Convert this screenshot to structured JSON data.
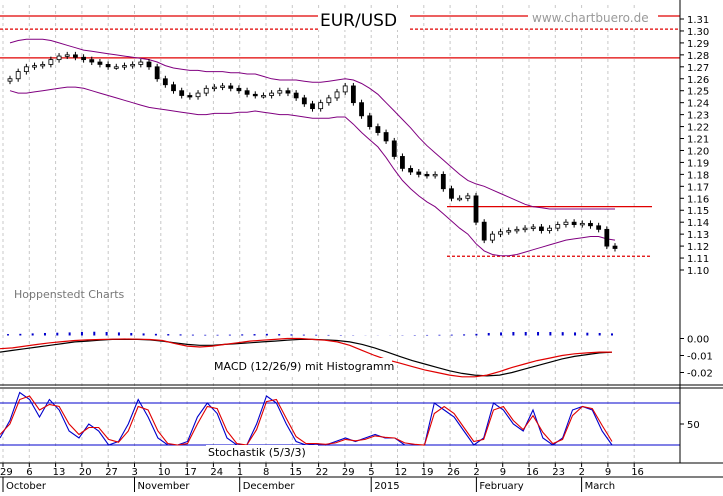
{
  "chart_data": [
    {
      "type": "candlestick",
      "title": "EUR/USD",
      "watermark": "www.chartbuero.de",
      "credit": "Hoppenstedt Charts",
      "ylim": [
        1.1,
        1.31
      ],
      "y_ticks": [
        "1.31",
        "1.30",
        "1.29",
        "1.28",
        "1.27",
        "1.26",
        "1.25",
        "1.24",
        "1.23",
        "1.22",
        "1.21",
        "1.20",
        "1.19",
        "1.18",
        "1.17",
        "1.16",
        "1.15",
        "1.14",
        "1.13",
        "1.12",
        "1.11",
        "1.10"
      ],
      "x_day_ticks": [
        "29",
        "6",
        "13",
        "20",
        "27",
        "3",
        "10",
        "17",
        "24",
        "1",
        "8",
        "15",
        "22",
        "29",
        "5",
        "12",
        "19",
        "26",
        "2",
        "9",
        "16",
        "23",
        "2",
        "9",
        "16"
      ],
      "x_month_labels": [
        "October",
        "November",
        "December",
        "2015",
        "February",
        "March"
      ],
      "grid": true,
      "reference_lines": [
        {
          "value": 1.3125,
          "style": "solid",
          "color": "#e00000"
        },
        {
          "value": 1.3015,
          "style": "dashed",
          "color": "#e00000"
        },
        {
          "value": 1.2775,
          "style": "solid",
          "color": "#e00000"
        },
        {
          "value": 1.153,
          "style": "solid",
          "color": "#e00000"
        },
        {
          "value": 1.1115,
          "style": "dashed",
          "color": "#e00000"
        }
      ],
      "close_series": [
        1.26,
        1.266,
        1.27,
        1.271,
        1.272,
        1.276,
        1.279,
        1.28,
        1.278,
        1.276,
        1.274,
        1.272,
        1.27,
        1.27,
        1.271,
        1.272,
        1.274,
        1.27,
        1.26,
        1.255,
        1.25,
        1.246,
        1.245,
        1.248,
        1.252,
        1.253,
        1.254,
        1.252,
        1.25,
        1.247,
        1.246,
        1.246,
        1.248,
        1.25,
        1.248,
        1.244,
        1.239,
        1.235,
        1.24,
        1.244,
        1.249,
        1.254,
        1.24,
        1.229,
        1.22,
        1.215,
        1.208,
        1.195,
        1.185,
        1.182,
        1.18,
        1.179,
        1.18,
        1.168,
        1.16,
        1.16,
        1.162,
        1.14,
        1.125,
        1.13,
        1.132,
        1.133,
        1.134,
        1.135,
        1.136,
        1.133,
        1.135,
        1.138,
        1.14,
        1.138,
        1.139,
        1.137,
        1.134,
        1.12,
        1.118
      ],
      "bollinger_upper": [
        1.29,
        1.292,
        1.293,
        1.293,
        1.293,
        1.292,
        1.29,
        1.288,
        1.286,
        1.284,
        1.283,
        1.282,
        1.281,
        1.28,
        1.279,
        1.278,
        1.277,
        1.276,
        1.274,
        1.271,
        1.269,
        1.268,
        1.267,
        1.267,
        1.266,
        1.266,
        1.266,
        1.265,
        1.265,
        1.264,
        1.264,
        1.262,
        1.26,
        1.259,
        1.259,
        1.259,
        1.258,
        1.257,
        1.257,
        1.258,
        1.259,
        1.26,
        1.259,
        1.256,
        1.252,
        1.247,
        1.24,
        1.233,
        1.226,
        1.219,
        1.211,
        1.204,
        1.198,
        1.192,
        1.186,
        1.18,
        1.175,
        1.172,
        1.17,
        1.167,
        1.164,
        1.161,
        1.158,
        1.155,
        1.153,
        1.152,
        1.151,
        1.151,
        1.151,
        1.151,
        1.151,
        1.151,
        1.151,
        1.151,
        1.151
      ],
      "bollinger_lower": [
        1.25,
        1.248,
        1.248,
        1.249,
        1.25,
        1.251,
        1.252,
        1.253,
        1.253,
        1.252,
        1.25,
        1.248,
        1.246,
        1.244,
        1.242,
        1.24,
        1.238,
        1.236,
        1.235,
        1.234,
        1.233,
        1.232,
        1.231,
        1.23,
        1.23,
        1.231,
        1.231,
        1.231,
        1.232,
        1.232,
        1.233,
        1.232,
        1.231,
        1.23,
        1.23,
        1.229,
        1.228,
        1.227,
        1.227,
        1.227,
        1.228,
        1.228,
        1.222,
        1.215,
        1.209,
        1.203,
        1.194,
        1.184,
        1.175,
        1.168,
        1.162,
        1.157,
        1.153,
        1.147,
        1.141,
        1.135,
        1.13,
        1.122,
        1.116,
        1.113,
        1.112,
        1.112,
        1.113,
        1.115,
        1.117,
        1.119,
        1.121,
        1.123,
        1.125,
        1.126,
        1.127,
        1.128,
        1.128,
        1.126,
        1.125
      ],
      "colors": {
        "up": "#ffffff",
        "down": "#000000",
        "bands": "#800080",
        "reference": "#e00000"
      }
    },
    {
      "type": "line",
      "label": "MACD (12/26/9) mit Histogramm",
      "ylim": [
        -0.025,
        0.005
      ],
      "y_ticks": [
        "0.00",
        "-0.01",
        "-0.02"
      ],
      "series": [
        {
          "id": "macd",
          "color": "#000000",
          "values": [
            -0.008,
            -0.007,
            -0.006,
            -0.005,
            -0.004,
            -0.003,
            -0.002,
            -0.0015,
            -0.001,
            -0.0005,
            -0.0005,
            -0.0005,
            -0.0008,
            -0.0015,
            -0.0025,
            -0.0035,
            -0.004,
            -0.004,
            -0.0035,
            -0.003,
            -0.0025,
            -0.002,
            -0.0015,
            -0.001,
            -0.0005,
            -0.0005,
            -0.0008,
            -0.0012,
            -0.002,
            -0.0035,
            -0.0055,
            -0.008,
            -0.0105,
            -0.013,
            -0.015,
            -0.017,
            -0.019,
            -0.0205,
            -0.0215,
            -0.022,
            -0.0215,
            -0.02,
            -0.018,
            -0.016,
            -0.014,
            -0.012,
            -0.0105,
            -0.0095,
            -0.0085,
            -0.008
          ]
        },
        {
          "id": "signal",
          "color": "#e00000",
          "values": [
            -0.006,
            -0.0055,
            -0.0045,
            -0.0035,
            -0.0025,
            -0.0018,
            -0.0012,
            -0.0008,
            -0.0006,
            -0.0004,
            -0.0003,
            -0.0004,
            -0.0006,
            -0.0012,
            -0.003,
            -0.0045,
            -0.005,
            -0.0045,
            -0.0035,
            -0.0025,
            -0.0015,
            -0.001,
            -0.0005,
            0.0,
            0.0,
            -0.0005,
            -0.001,
            -0.002,
            -0.004,
            -0.007,
            -0.01,
            -0.0125,
            -0.0145,
            -0.0165,
            -0.0185,
            -0.02,
            -0.0215,
            -0.0225,
            -0.0225,
            -0.0215,
            -0.0195,
            -0.017,
            -0.015,
            -0.013,
            -0.0115,
            -0.01,
            -0.009,
            -0.0085,
            -0.008,
            -0.008
          ]
        }
      ],
      "histogram": [
        0.001,
        0.0012,
        0.0015,
        0.0018,
        0.002,
        0.0022,
        0.0025,
        0.0027,
        0.0025,
        0.0022,
        0.0018,
        0.0015,
        0.0012,
        0.001,
        0.0008,
        0.0006,
        0.0005,
        0.0005,
        0.0006,
        0.0008,
        0.001,
        0.0012,
        0.001,
        0.0008,
        0.0006,
        0.0005,
        0.0004,
        0.0003,
        0.0002,
        0.0001,
        0.0001,
        0.0001,
        0.0002,
        0.0003,
        0.0004,
        0.0005,
        0.0006,
        0.0008,
        0.0012,
        0.0018,
        0.0022,
        0.0025,
        0.0025,
        0.0025,
        0.0025,
        0.0024,
        0.0022,
        0.002,
        0.0018,
        0.0015
      ],
      "histogram_color": "#0000cc"
    },
    {
      "type": "line",
      "label": "Stochastik (5/3/3)",
      "ylim": [
        0,
        100
      ],
      "y_ticks": [
        "50"
      ],
      "reference_lines": [
        80,
        20
      ],
      "series": [
        {
          "id": "k",
          "color": "#0000cc",
          "values": [
            30,
            55,
            95,
            85,
            60,
            85,
            70,
            40,
            30,
            50,
            40,
            20,
            25,
            50,
            85,
            60,
            30,
            20,
            20,
            25,
            60,
            80,
            65,
            30,
            20,
            20,
            50,
            90,
            80,
            50,
            25,
            20,
            22,
            20,
            25,
            30,
            25,
            30,
            35,
            30,
            30,
            20,
            20,
            20,
            80,
            70,
            60,
            40,
            20,
            30,
            80,
            70,
            50,
            40,
            70,
            30,
            20,
            30,
            70,
            75,
            70,
            40,
            20
          ]
        },
        {
          "id": "d",
          "color": "#e00000",
          "values": [
            35,
            50,
            85,
            90,
            70,
            78,
            75,
            50,
            35,
            45,
            45,
            28,
            24,
            40,
            75,
            70,
            40,
            22,
            20,
            22,
            50,
            75,
            72,
            40,
            22,
            20,
            42,
            82,
            85,
            58,
            32,
            22,
            22,
            21,
            23,
            28,
            26,
            28,
            33,
            31,
            30,
            23,
            21,
            20,
            65,
            75,
            65,
            45,
            25,
            28,
            70,
            75,
            55,
            42,
            62,
            38,
            22,
            28,
            62,
            75,
            72,
            48,
            25
          ]
        }
      ]
    }
  ]
}
